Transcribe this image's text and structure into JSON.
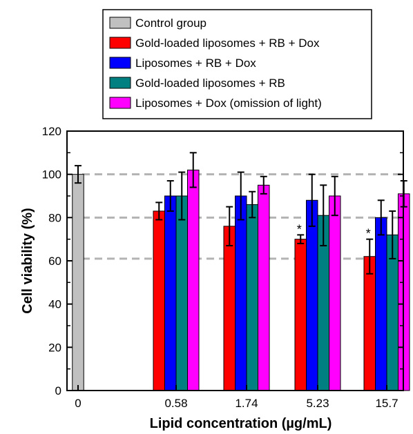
{
  "chart_data": {
    "type": "bar",
    "title": "",
    "xlabel": "Lipid concentration (µg/mL)",
    "ylabel": "Cell viability (%)",
    "ylim": [
      0,
      120
    ],
    "yticks": [
      "0",
      "20",
      "40",
      "60",
      "80",
      "100",
      "120"
    ],
    "categories": [
      "0",
      "0.58",
      "1.74",
      "5.23",
      "15.7"
    ],
    "reference_lines": [
      61,
      80,
      100
    ],
    "grid": false,
    "legend_position": "top-center",
    "series": [
      {
        "name": "Control group",
        "color": "#c0c0c0",
        "values": [
          100,
          null,
          null,
          null,
          null
        ],
        "errors": [
          4,
          null,
          null,
          null,
          null
        ],
        "significance": [
          "",
          "",
          "",
          "",
          ""
        ]
      },
      {
        "name": "Gold-loaded liposomes + RB + Dox",
        "color": "#ff0000",
        "values": [
          null,
          83,
          76,
          70,
          62
        ],
        "errors": [
          null,
          4,
          9,
          2,
          8
        ],
        "significance": [
          "",
          "",
          "",
          "*",
          "*"
        ]
      },
      {
        "name": "Liposomes + RB + Dox",
        "color": "#0000ff",
        "values": [
          null,
          90,
          90,
          88,
          80
        ],
        "errors": [
          null,
          7,
          11,
          12,
          8
        ],
        "significance": [
          "",
          "",
          "",
          "",
          ""
        ]
      },
      {
        "name": "Gold-loaded liposomes + RB",
        "color": "#008080",
        "values": [
          null,
          90,
          86,
          81,
          72
        ],
        "errors": [
          null,
          11,
          6,
          14,
          11
        ],
        "significance": [
          "",
          "",
          "",
          "",
          ""
        ]
      },
      {
        "name": "Liposomes + Dox (omission of light)",
        "color": "#ff00ff",
        "values": [
          null,
          102,
          95,
          90,
          91
        ],
        "errors": [
          null,
          8,
          4,
          9,
          6
        ],
        "significance": [
          "",
          "",
          "",
          "",
          ""
        ]
      }
    ]
  }
}
